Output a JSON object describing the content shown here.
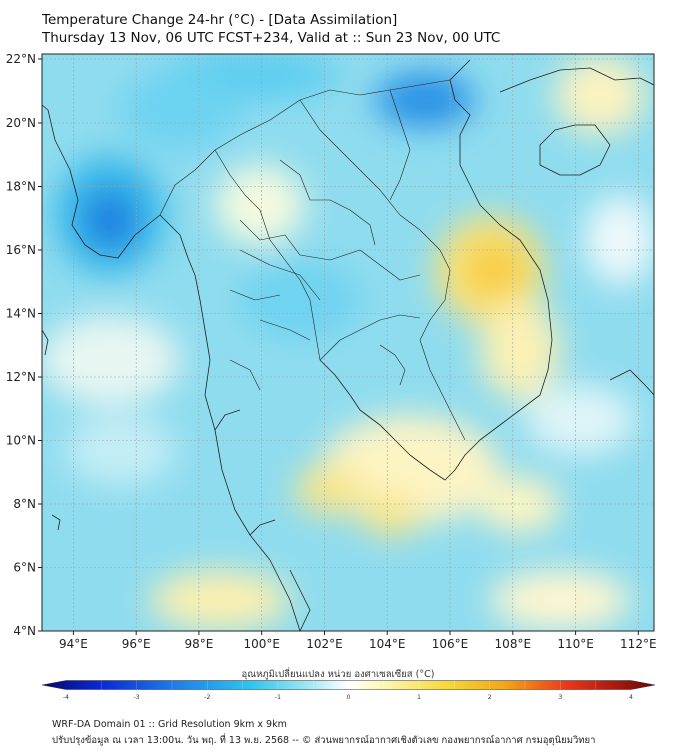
{
  "header": {
    "title_line1": "Temperature Change 24-hr (°C) - [Data Assimilation]",
    "title_line2": "Thursday 13 Nov, 06 UTC FCST+234, Valid at :: Sun 23 Nov, 00 UTC"
  },
  "map": {
    "lat_labels": [
      "22°N",
      "20°N",
      "18°N",
      "16°N",
      "14°N",
      "12°N",
      "10°N",
      "8°N",
      "6°N",
      "4°N"
    ],
    "lon_labels": [
      "94°E",
      "96°E",
      "98°E",
      "100°E",
      "102°E",
      "104°E",
      "106°E",
      "108°E",
      "110°E",
      "112°E"
    ],
    "lat_range": [
      4,
      22
    ],
    "lon_range": [
      93,
      112.5
    ]
  },
  "colorbar": {
    "label": "อุณหภูมิเปลี่ยนแปลง หน่วย องศาเซลเซียส (°C)",
    "ticks": [
      "-4",
      "-3",
      "-2",
      "-1",
      "0",
      "1",
      "2",
      "3",
      "4"
    ],
    "range": [
      -4,
      4
    ]
  },
  "footer": {
    "line1": "WRF-DA Domain 01 :: Grid Resolution 9km x 9km",
    "line2": "ปรับปรุงข้อมูล ณ เวลา 13:00น. วัน พฤ. ที่ 13 พ.ย. 2568 -- © ส่วนพยากรณ์อากาศเชิงตัวเลข กองพยากรณ์อากาศ กรมอุตุนิยมวิทยา"
  }
}
